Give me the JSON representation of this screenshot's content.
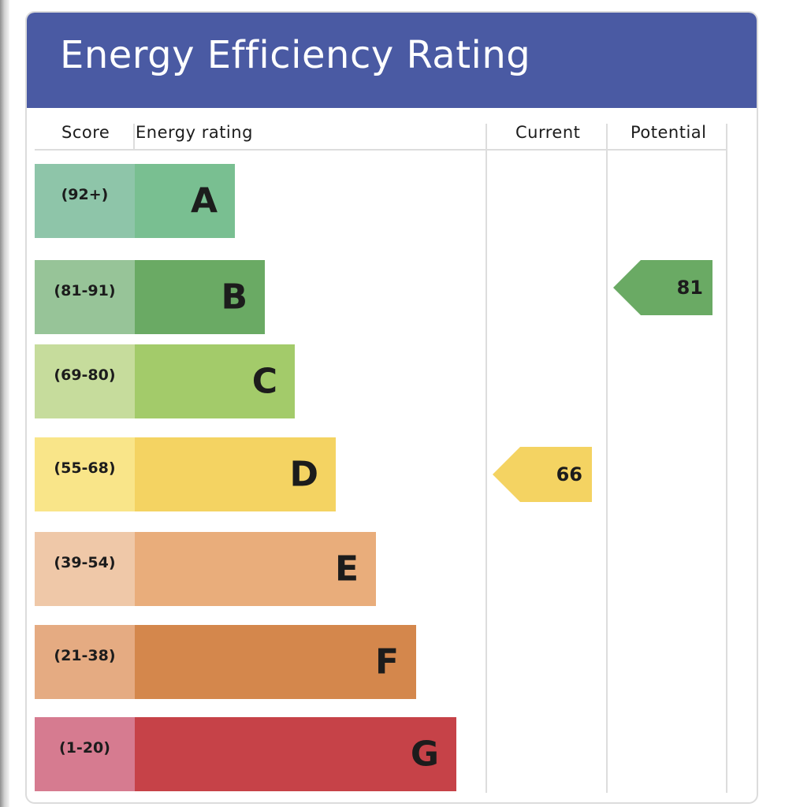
{
  "title": "Energy Efficiency Rating",
  "columns": {
    "score": "Score",
    "rating": "Energy rating",
    "current": "Current",
    "potential": "Potential"
  },
  "chart_data": {
    "type": "bar",
    "bands": [
      {
        "letter": "A",
        "range": "(92+)",
        "color": "#79bf91",
        "score_color": "#8ec5a9"
      },
      {
        "letter": "B",
        "range": "(81-91)",
        "color": "#6aaa64",
        "score_color": "#97c498"
      },
      {
        "letter": "C",
        "range": "(69-80)",
        "color": "#a3cb6a",
        "score_color": "#c6dc9c"
      },
      {
        "letter": "D",
        "range": "(55-68)",
        "color": "#f4d362",
        "score_color": "#f9e589"
      },
      {
        "letter": "E",
        "range": "(39-54)",
        "color": "#e9ad7b",
        "score_color": "#efc8a8"
      },
      {
        "letter": "F",
        "range": "(21-38)",
        "color": "#d4874c",
        "score_color": "#e5ab82"
      },
      {
        "letter": "G",
        "range": "(1-20)",
        "color": "#c64248",
        "score_color": "#d67b90"
      }
    ],
    "current": {
      "value": 66,
      "band": "D"
    },
    "potential": {
      "value": 81,
      "band": "B"
    }
  }
}
